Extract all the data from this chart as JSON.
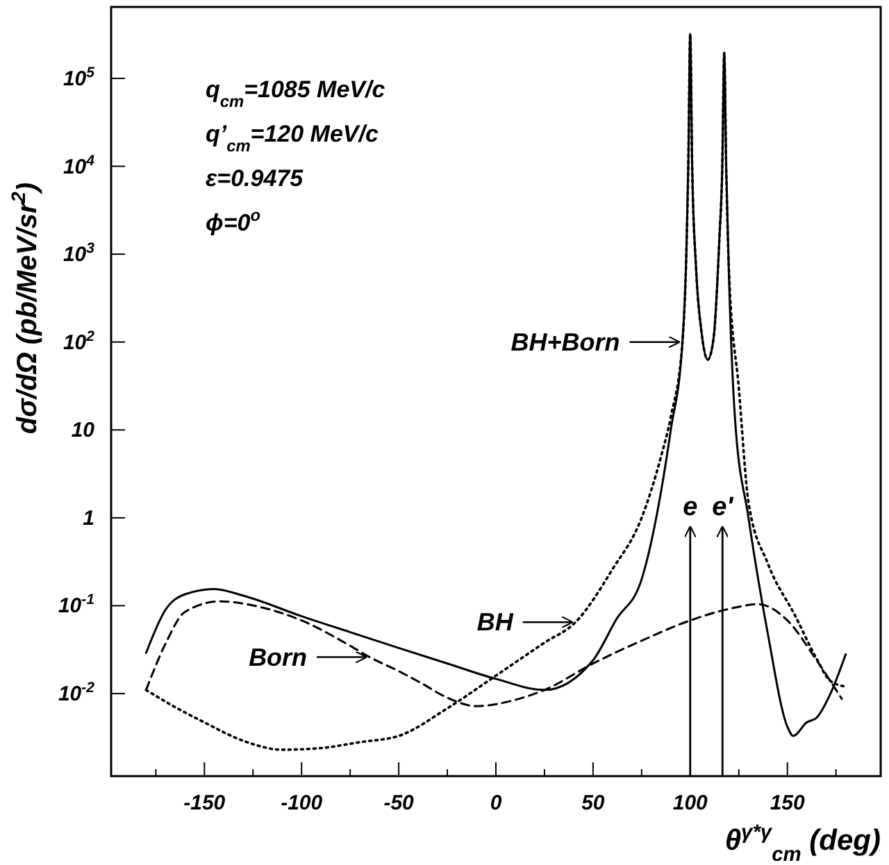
{
  "chart_data": {
    "type": "line",
    "xlabel": "θ$^{γ*γ}$$_{cm}$ (deg)",
    "ylabel": "dσ/dΩ (pb/MeV/sr$^{2}$)",
    "log": "y",
    "grid": false,
    "marker": "none",
    "xlim": [
      -198,
      198
    ],
    "ylim": [
      0.00115,
      650000
    ],
    "xticks": [
      {
        "value": -175,
        "label": null
      },
      -150,
      {
        "value": -125,
        "label": null
      },
      -100,
      {
        "value": -75,
        "label": null
      },
      -50,
      {
        "value": -25,
        "label": null
      },
      0,
      {
        "value": 25,
        "label": null
      },
      50,
      {
        "value": 75,
        "label": null
      },
      100,
      {
        "value": 125,
        "label": null
      },
      150,
      {
        "value": 175,
        "label": null
      }
    ],
    "yticks": [
      {
        "value": 0.01,
        "label": "10$^{-2}$"
      },
      {
        "value": 0.1,
        "label": "10$^{-1}$"
      },
      1,
      10,
      {
        "value": 100,
        "label": "10$^{2}$"
      },
      {
        "value": 1000,
        "label": "10$^{3}$"
      },
      {
        "value": 10000,
        "label": "10$^{4}$"
      },
      {
        "value": 100000,
        "label": "10$^{5}$"
      }
    ],
    "series": [
      {
        "color": "#000000",
        "line_style": "solid",
        "x": [
          -180,
          -170,
          -160,
          -145,
          -130,
          -100,
          -75,
          -50,
          -25,
          0,
          25,
          50,
          62,
          75,
          85,
          90,
          96,
          98,
          99,
          100,
          101,
          103,
          106,
          109,
          112,
          115,
          116.5,
          117.5,
          118.5,
          120,
          123,
          130,
          140,
          150,
          153,
          160,
          165,
          172,
          180
        ],
        "values": [
          0.029,
          0.09,
          0.135,
          0.155,
          0.13,
          0.076,
          0.05,
          0.033,
          0.022,
          0.0147,
          0.011,
          0.024,
          0.07,
          0.2,
          2,
          10,
          100,
          1000,
          10000,
          320000,
          10000,
          700,
          120,
          63,
          110,
          1500,
          10000,
          195000,
          10000,
          500,
          14,
          1,
          0.047,
          0.0042,
          0.0033,
          0.0047,
          0.0053,
          0.0098,
          0.028
        ]
      },
      {
        "color": "#000000",
        "line_style": "dashed",
        "x": [
          -180,
          -170,
          -160,
          -142,
          -120,
          -100,
          -75,
          -65,
          -50,
          -38,
          -26,
          -10,
          10,
          25,
          50,
          75,
          100,
          120,
          135,
          150,
          165,
          178
        ],
        "values": [
          0.011,
          0.037,
          0.085,
          0.112,
          0.095,
          0.068,
          0.035,
          0.026,
          0.018,
          0.013,
          0.0092,
          0.0072,
          0.0085,
          0.011,
          0.022,
          0.04,
          0.068,
          0.092,
          0.104,
          0.068,
          0.024,
          0.0087
        ]
      },
      {
        "color": "#000000",
        "line_style": "dotted",
        "x": [
          -180,
          -165,
          -150,
          -130,
          -110,
          -90,
          -70,
          -50,
          -25,
          0,
          25,
          41,
          60,
          75,
          85,
          90,
          96,
          98,
          99,
          100,
          101,
          103,
          106,
          109,
          112,
          115,
          116.5,
          117.5,
          118.5,
          120,
          125,
          130,
          140,
          154,
          165,
          172,
          180
        ],
        "values": [
          0.011,
          0.007,
          0.0047,
          0.0029,
          0.0023,
          0.0024,
          0.0028,
          0.0033,
          0.0068,
          0.016,
          0.038,
          0.065,
          0.26,
          1,
          5,
          14,
          100,
          1000,
          10000,
          320000,
          10000,
          700,
          120,
          63,
          110,
          1500,
          10000,
          195000,
          10000,
          600,
          30,
          1.5,
          0.3,
          0.077,
          0.025,
          0.014,
          0.012
        ]
      }
    ],
    "ref_lines": [
      {
        "axis": "x",
        "value": 100,
        "label": "e"
      },
      {
        "axis": "x",
        "value": 116.6,
        "label": "e'"
      }
    ],
    "annotations": [
      "q$_{cm}$=1085 MeV/c",
      "q’$_{cm}$=120 MeV/c",
      "ε=0.9475",
      "ϕ=0$^{o}$",
      {
        "text": "BH+Born",
        "x": 96,
        "y": 100
      },
      {
        "text": "BH",
        "x": 41,
        "y": 0.065
      },
      {
        "text": "Born",
        "x": -65,
        "y": 0.026
      }
    ]
  }
}
